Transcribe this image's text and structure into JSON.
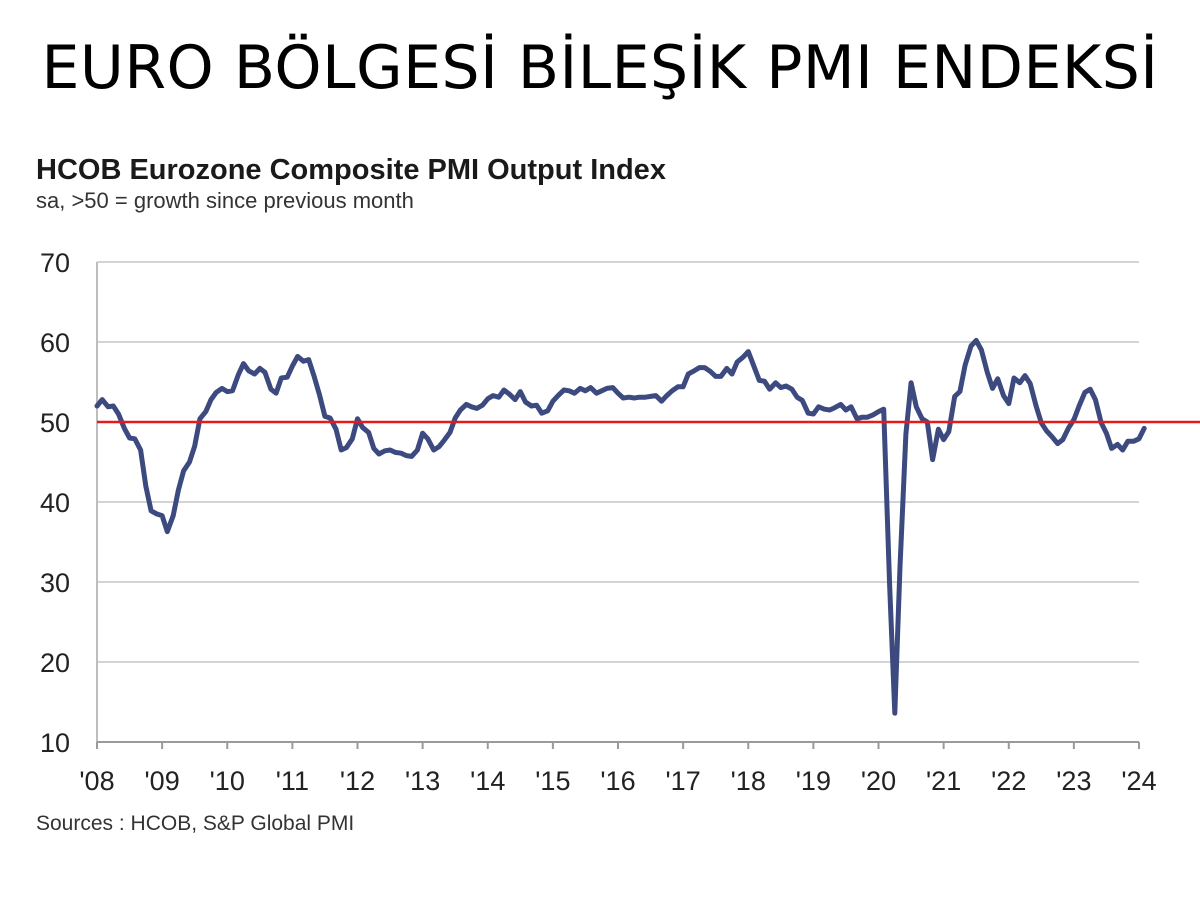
{
  "slide": {
    "title": "EURO BÖLGESİ BİLEŞİK PMI ENDEKSİ"
  },
  "chart_data": {
    "type": "line",
    "title": "HCOB Eurozone Composite PMI Output Index",
    "subtitle": "sa, >50 = growth since previous month",
    "source": "Sources : HCOB, S&P Global PMI",
    "xlabel": "",
    "ylabel": "",
    "ylim": [
      10,
      70
    ],
    "yticks": [
      10,
      20,
      30,
      40,
      50,
      60,
      70
    ],
    "xlim": [
      2008,
      2024
    ],
    "xticks": [
      {
        "x": 2008,
        "label": "'08"
      },
      {
        "x": 2009,
        "label": "'09"
      },
      {
        "x": 2010,
        "label": "'10"
      },
      {
        "x": 2011,
        "label": "'11"
      },
      {
        "x": 2012,
        "label": "'12"
      },
      {
        "x": 2013,
        "label": "'13"
      },
      {
        "x": 2014,
        "label": "'14"
      },
      {
        "x": 2015,
        "label": "'15"
      },
      {
        "x": 2016,
        "label": "'16"
      },
      {
        "x": 2017,
        "label": "'17"
      },
      {
        "x": 2018,
        "label": "'18"
      },
      {
        "x": 2019,
        "label": "'19"
      },
      {
        "x": 2020,
        "label": "'20"
      },
      {
        "x": 2021,
        "label": "'21"
      },
      {
        "x": 2022,
        "label": "'22"
      },
      {
        "x": 2023,
        "label": "'23"
      },
      {
        "x": 2024,
        "label": "'24"
      }
    ],
    "grid": true,
    "reference_line": {
      "y": 50,
      "color": "#e41a1c"
    },
    "series": [
      {
        "color": "#3c4a80",
        "x": [
          2008.0,
          2008.08,
          2008.17,
          2008.25,
          2008.33,
          2008.42,
          2008.5,
          2008.58,
          2008.67,
          2008.75,
          2008.83,
          2008.92,
          2009.0,
          2009.08,
          2009.17,
          2009.25,
          2009.33,
          2009.42,
          2009.5,
          2009.58,
          2009.67,
          2009.75,
          2009.83,
          2009.92,
          2010.0,
          2010.08,
          2010.17,
          2010.25,
          2010.33,
          2010.42,
          2010.5,
          2010.58,
          2010.67,
          2010.75,
          2010.83,
          2010.92,
          2011.0,
          2011.08,
          2011.17,
          2011.25,
          2011.33,
          2011.42,
          2011.5,
          2011.58,
          2011.67,
          2011.75,
          2011.83,
          2011.92,
          2012.0,
          2012.08,
          2012.17,
          2012.25,
          2012.33,
          2012.42,
          2012.5,
          2012.58,
          2012.67,
          2012.75,
          2012.83,
          2012.92,
          2013.0,
          2013.08,
          2013.17,
          2013.25,
          2013.33,
          2013.42,
          2013.5,
          2013.58,
          2013.67,
          2013.75,
          2013.83,
          2013.92,
          2014.0,
          2014.08,
          2014.17,
          2014.25,
          2014.33,
          2014.42,
          2014.5,
          2014.58,
          2014.67,
          2014.75,
          2014.83,
          2014.92,
          2015.0,
          2015.08,
          2015.17,
          2015.25,
          2015.33,
          2015.42,
          2015.5,
          2015.58,
          2015.67,
          2015.75,
          2015.83,
          2015.92,
          2016.0,
          2016.08,
          2016.17,
          2016.25,
          2016.33,
          2016.42,
          2016.5,
          2016.58,
          2016.67,
          2016.75,
          2016.83,
          2016.92,
          2017.0,
          2017.08,
          2017.17,
          2017.25,
          2017.33,
          2017.42,
          2017.5,
          2017.58,
          2017.67,
          2017.75,
          2017.83,
          2017.92,
          2018.0,
          2018.08,
          2018.17,
          2018.25,
          2018.33,
          2018.42,
          2018.5,
          2018.58,
          2018.67,
          2018.75,
          2018.83,
          2018.92,
          2019.0,
          2019.08,
          2019.17,
          2019.25,
          2019.33,
          2019.42,
          2019.5,
          2019.58,
          2019.67,
          2019.75,
          2019.83,
          2019.92,
          2020.0,
          2020.08,
          2020.17,
          2020.25,
          2020.33,
          2020.42,
          2020.5,
          2020.58,
          2020.67,
          2020.75,
          2020.83,
          2020.92,
          2021.0,
          2021.08,
          2021.17,
          2021.25,
          2021.33,
          2021.42,
          2021.5,
          2021.58,
          2021.67,
          2021.75,
          2021.83,
          2021.92,
          2022.0,
          2022.08,
          2022.17,
          2022.25,
          2022.33,
          2022.42,
          2022.5,
          2022.58,
          2022.67,
          2022.75,
          2022.83,
          2022.92,
          2023.0,
          2023.08,
          2023.17,
          2023.25,
          2023.33,
          2023.42,
          2023.5,
          2023.58,
          2023.67,
          2023.75,
          2023.83,
          2023.92,
          2024.0,
          2024.08
        ],
        "y": [
          52.0,
          52.8,
          51.9,
          52.0,
          51.0,
          49.2,
          48.0,
          47.9,
          46.5,
          42.0,
          38.9,
          38.5,
          38.3,
          36.3,
          38.3,
          41.5,
          43.9,
          45.0,
          47.0,
          50.4,
          51.3,
          52.8,
          53.7,
          54.2,
          53.8,
          53.9,
          55.9,
          57.3,
          56.4,
          56.0,
          56.7,
          56.2,
          54.1,
          53.6,
          55.5,
          55.6,
          57.0,
          58.2,
          57.6,
          57.8,
          55.8,
          53.3,
          50.7,
          50.5,
          49.1,
          46.5,
          46.8,
          47.9,
          50.4,
          49.3,
          48.7,
          46.7,
          46.0,
          46.4,
          46.5,
          46.2,
          46.1,
          45.8,
          45.7,
          46.5,
          48.6,
          47.9,
          46.5,
          46.9,
          47.7,
          48.7,
          50.5,
          51.5,
          52.2,
          51.9,
          51.7,
          52.1,
          52.9,
          53.3,
          53.1,
          54.0,
          53.5,
          52.8,
          53.8,
          52.5,
          52.0,
          52.1,
          51.1,
          51.4,
          52.6,
          53.3,
          54.0,
          53.9,
          53.6,
          54.2,
          53.9,
          54.3,
          53.6,
          53.9,
          54.2,
          54.3,
          53.6,
          53.0,
          53.1,
          53.0,
          53.1,
          53.1,
          53.2,
          53.3,
          52.6,
          53.3,
          53.9,
          54.4,
          54.4,
          56.0,
          56.4,
          56.8,
          56.8,
          56.3,
          55.7,
          55.7,
          56.7,
          56.0,
          57.5,
          58.1,
          58.8,
          57.1,
          55.2,
          55.1,
          54.1,
          54.9,
          54.3,
          54.5,
          54.1,
          53.1,
          52.7,
          51.1,
          51.0,
          51.9,
          51.6,
          51.5,
          51.8,
          52.2,
          51.5,
          51.9,
          50.4,
          50.6,
          50.6,
          50.9,
          51.3,
          51.6,
          29.7,
          13.6,
          31.9,
          48.5,
          54.9,
          51.9,
          50.4,
          50.0,
          45.3,
          49.1,
          47.8,
          48.8,
          53.2,
          53.8,
          57.1,
          59.5,
          60.2,
          59.0,
          56.2,
          54.2,
          55.4,
          53.3,
          52.3,
          55.5,
          54.9,
          55.8,
          54.8,
          52.0,
          49.9,
          48.9,
          48.1,
          47.3,
          47.8,
          49.3,
          50.3,
          52.0,
          53.7,
          54.1,
          52.8,
          49.9,
          48.6,
          46.7,
          47.2,
          46.5,
          47.6,
          47.6,
          47.9,
          49.2
        ]
      }
    ]
  }
}
